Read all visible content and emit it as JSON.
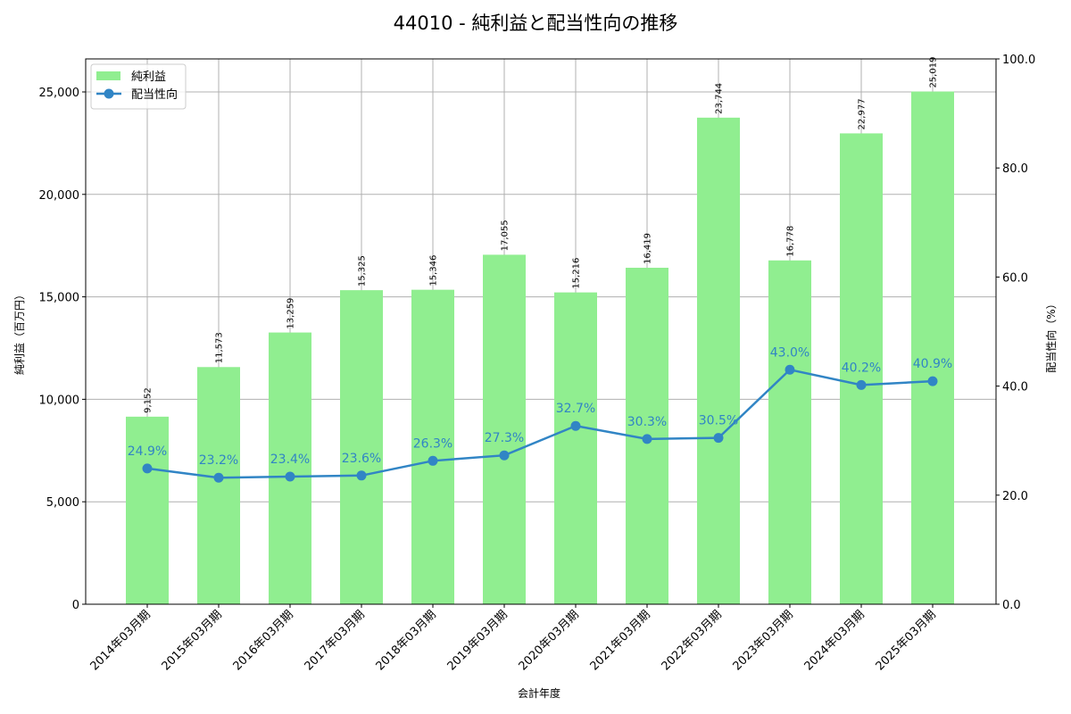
{
  "chart_data": {
    "type": "bar+line",
    "title": "44010 - 純利益と配当性向の推移",
    "xlabel": "会計年度",
    "ylabel": "純利益（百万円）",
    "y2label": "配当性向（%）",
    "categories": [
      "2014年03月期",
      "2015年03月期",
      "2016年03月期",
      "2017年03月期",
      "2018年03月期",
      "2019年03月期",
      "2020年03月期",
      "2021年03月期",
      "2022年03月期",
      "2023年03月期",
      "2024年03月期",
      "2025年03月期"
    ],
    "series": [
      {
        "name": "純利益",
        "type": "bar",
        "axis": "left",
        "color": "#90ee90",
        "values": [
          9152,
          11573,
          13259,
          15325,
          15346,
          17055,
          15216,
          16419,
          23744,
          16778,
          22977,
          25019
        ],
        "labels": [
          "9,152",
          "11,573",
          "13,259",
          "15,325",
          "15,346",
          "17,055",
          "15,216",
          "16,419",
          "23,744",
          "16,778",
          "22,977",
          "25,019"
        ]
      },
      {
        "name": "配当性向",
        "type": "line",
        "axis": "right",
        "color": "#3185c5",
        "values": [
          24.9,
          23.2,
          23.4,
          23.6,
          26.3,
          27.3,
          32.7,
          30.3,
          30.5,
          43.0,
          40.2,
          40.9
        ],
        "labels": [
          "24.9%",
          "23.2%",
          "23.4%",
          "23.6%",
          "26.3%",
          "27.3%",
          "32.7%",
          "30.3%",
          "30.5%",
          "43.0%",
          "40.2%",
          "40.9%"
        ]
      }
    ],
    "ylim": [
      0,
      26611
    ],
    "y2lim": [
      0,
      100
    ],
    "yticks": [
      0,
      5000,
      10000,
      15000,
      20000,
      25000
    ],
    "ytick_labels": [
      "0",
      "5,000",
      "10,000",
      "15,000",
      "20,000",
      "25,000"
    ],
    "y2ticks": [
      0,
      20,
      40,
      60,
      80,
      100
    ],
    "y2tick_labels": [
      "0.0",
      "20.0",
      "40.0",
      "60.0",
      "80.0",
      "100.0"
    ],
    "grid": true,
    "legend_position": "upper left"
  }
}
